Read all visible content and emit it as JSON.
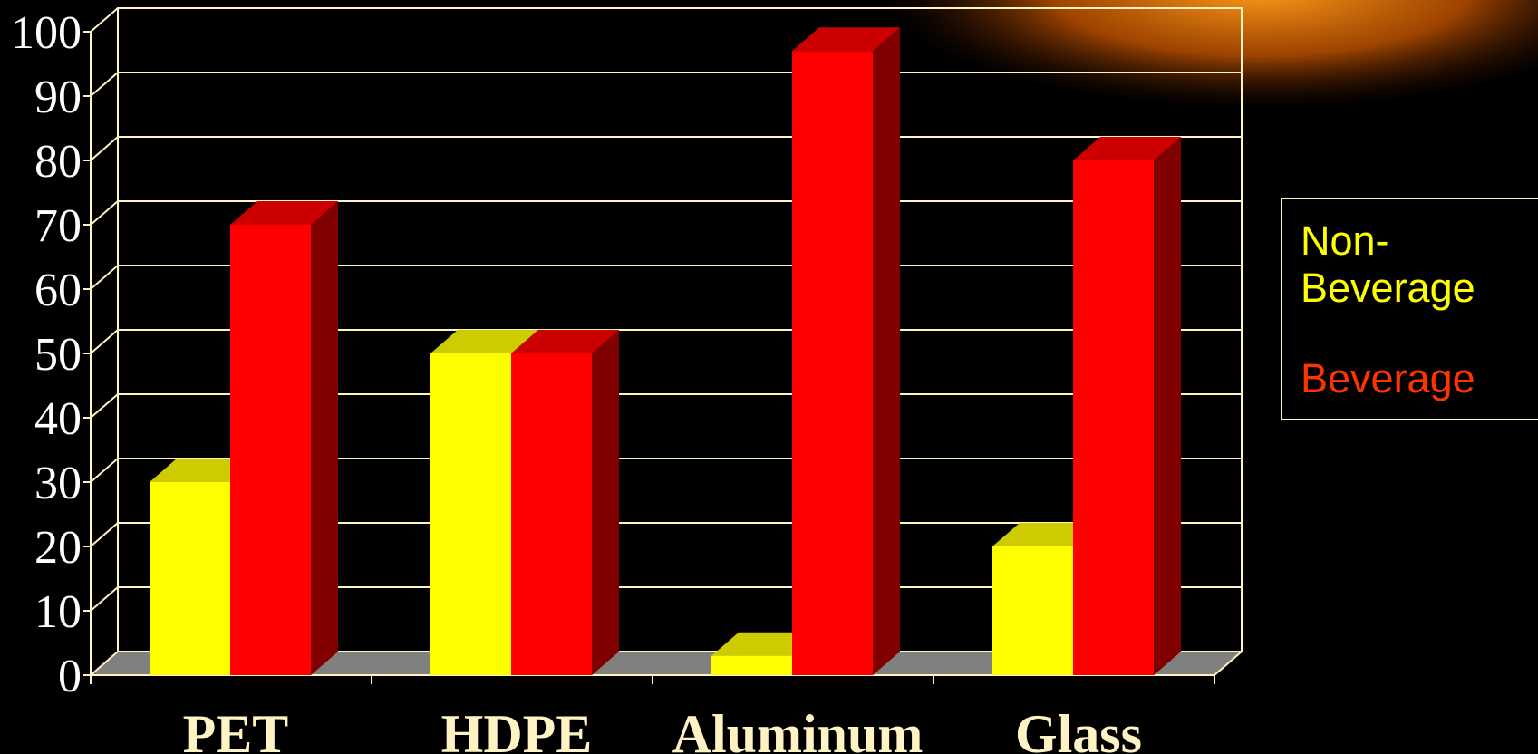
{
  "chart_data": {
    "type": "bar",
    "categories": [
      "PET",
      "HDPE",
      "Aluminum",
      "Glass"
    ],
    "series": [
      {
        "name": "Non-Beverage",
        "values": [
          30,
          50,
          3,
          20
        ],
        "color": "#ffff00"
      },
      {
        "name": "Beverage",
        "values": [
          70,
          50,
          97,
          80
        ],
        "color": "#ff0000"
      }
    ],
    "y_ticks": [
      "0",
      "10",
      "20",
      "30",
      "40",
      "50",
      "60",
      "70",
      "80",
      "90",
      "100"
    ],
    "ylim": [
      0,
      100
    ],
    "grid": true,
    "legend_position": "right",
    "style": "3d-clustered-column",
    "colors": {
      "background": "#000000",
      "grid": "#fff3c4",
      "floor": "#808080",
      "non_beverage_top": "#cccc00",
      "beverage_top": "#cc0000",
      "beverage_side": "#800000"
    }
  },
  "legend": {
    "items": [
      {
        "label": "Non-Beverage",
        "color": "#ffff00"
      },
      {
        "label": "Beverage",
        "color": "#ff3300"
      }
    ]
  }
}
